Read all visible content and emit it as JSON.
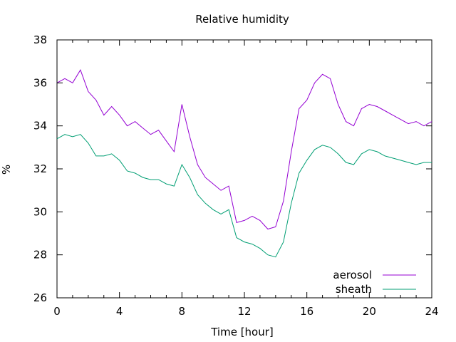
{
  "chart_data": {
    "type": "line",
    "title": "Relative humidity",
    "xlabel": "Time [hour]",
    "ylabel": "%",
    "xlim": [
      0,
      24
    ],
    "ylim": [
      26,
      38
    ],
    "x_ticks": [
      0,
      4,
      8,
      12,
      16,
      20,
      24
    ],
    "y_ticks": [
      26,
      28,
      30,
      32,
      34,
      36,
      38
    ],
    "grid": false,
    "legend_position": "bottom-right",
    "series": [
      {
        "name": "aerosol",
        "color": "#9400d3",
        "x": [
          0,
          0.5,
          1,
          1.5,
          2,
          2.5,
          3,
          3.5,
          4,
          4.5,
          5,
          5.5,
          6,
          6.5,
          7,
          7.5,
          8,
          8.5,
          9,
          9.5,
          10,
          10.5,
          11,
          11.5,
          12,
          12.5,
          13,
          13.5,
          14,
          14.5,
          15,
          15.5,
          16,
          16.5,
          17,
          17.5,
          18,
          18.5,
          19,
          19.5,
          20,
          20.5,
          21,
          21.5,
          22,
          22.5,
          23,
          23.5,
          24
        ],
        "values": [
          36.0,
          36.2,
          36.0,
          36.6,
          35.6,
          35.2,
          34.5,
          34.9,
          34.5,
          34.0,
          34.2,
          33.9,
          33.6,
          33.8,
          33.3,
          32.8,
          35.0,
          33.5,
          32.2,
          31.6,
          31.3,
          31.0,
          31.2,
          29.5,
          29.6,
          29.8,
          29.6,
          29.2,
          29.3,
          30.5,
          32.8,
          34.8,
          35.2,
          36.0,
          36.4,
          36.2,
          35.0,
          34.2,
          34.0,
          34.8,
          35.0,
          34.9,
          34.7,
          34.5,
          34.3,
          34.1,
          34.2,
          34.0,
          34.2
        ]
      },
      {
        "name": "sheath",
        "color": "#009e73",
        "x": [
          0,
          0.5,
          1,
          1.5,
          2,
          2.5,
          3,
          3.5,
          4,
          4.5,
          5,
          5.5,
          6,
          6.5,
          7,
          7.5,
          8,
          8.5,
          9,
          9.5,
          10,
          10.5,
          11,
          11.5,
          12,
          12.5,
          13,
          13.5,
          14,
          14.5,
          15,
          15.5,
          16,
          16.5,
          17,
          17.5,
          18,
          18.5,
          19,
          19.5,
          20,
          20.5,
          21,
          21.5,
          22,
          22.5,
          23,
          23.5,
          24
        ],
        "values": [
          33.4,
          33.6,
          33.5,
          33.6,
          33.2,
          32.6,
          32.6,
          32.7,
          32.4,
          31.9,
          31.8,
          31.6,
          31.5,
          31.5,
          31.3,
          31.2,
          32.2,
          31.6,
          30.8,
          30.4,
          30.1,
          29.9,
          30.1,
          28.8,
          28.6,
          28.5,
          28.3,
          28.0,
          27.9,
          28.6,
          30.4,
          31.8,
          32.4,
          32.9,
          33.1,
          33.0,
          32.7,
          32.3,
          32.2,
          32.7,
          32.9,
          32.8,
          32.6,
          32.5,
          32.4,
          32.3,
          32.2,
          32.3,
          32.3
        ]
      }
    ]
  }
}
